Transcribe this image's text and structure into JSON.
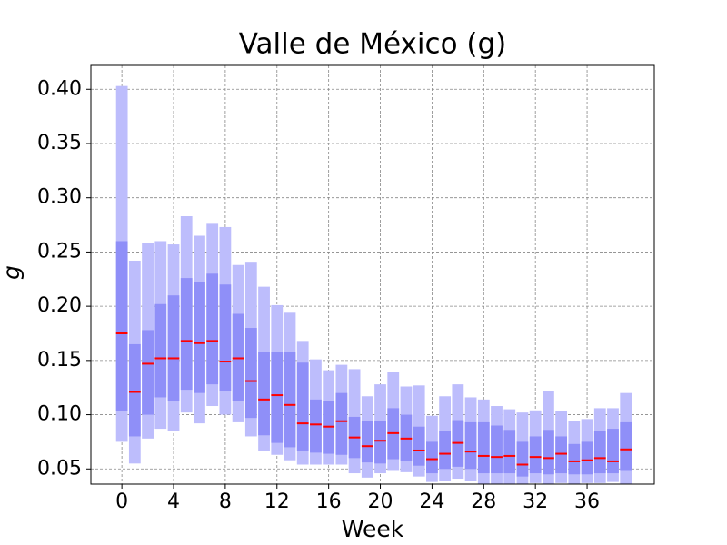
{
  "chart_data": {
    "type": "box",
    "title": "Valle de México (g)",
    "x_label": "Week",
    "y_label": "g",
    "x": [
      0,
      1,
      2,
      3,
      4,
      5,
      6,
      7,
      8,
      9,
      10,
      11,
      12,
      13,
      14,
      15,
      16,
      17,
      18,
      19,
      20,
      21,
      22,
      23,
      24,
      25,
      26,
      27,
      28,
      29,
      30,
      31,
      32,
      33,
      34,
      35,
      36,
      37,
      38,
      39
    ],
    "outer_low": [
      0.075,
      0.055,
      0.078,
      0.087,
      0.085,
      0.102,
      0.092,
      0.108,
      0.1,
      0.093,
      0.08,
      0.067,
      0.063,
      0.058,
      0.054,
      0.054,
      0.054,
      0.054,
      0.046,
      0.042,
      0.046,
      0.049,
      0.047,
      0.043,
      0.038,
      0.039,
      0.041,
      0.039,
      0.036,
      0.036,
      0.036,
      0.036,
      0.037,
      0.036,
      0.037,
      0.036,
      0.037,
      0.037,
      0.038,
      0.036
    ],
    "outer_high": [
      0.403,
      0.242,
      0.258,
      0.26,
      0.257,
      0.283,
      0.265,
      0.276,
      0.273,
      0.238,
      0.241,
      0.218,
      0.201,
      0.194,
      0.168,
      0.151,
      0.141,
      0.146,
      0.142,
      0.117,
      0.128,
      0.139,
      0.126,
      0.127,
      0.099,
      0.117,
      0.128,
      0.116,
      0.114,
      0.108,
      0.105,
      0.102,
      0.104,
      0.122,
      0.103,
      0.094,
      0.096,
      0.106,
      0.106,
      0.12
    ],
    "inner_low": [
      0.103,
      0.08,
      0.1,
      0.116,
      0.113,
      0.123,
      0.12,
      0.128,
      0.122,
      0.113,
      0.097,
      0.081,
      0.074,
      0.07,
      0.067,
      0.065,
      0.064,
      0.063,
      0.06,
      0.056,
      0.055,
      0.059,
      0.057,
      0.053,
      0.046,
      0.05,
      0.052,
      0.05,
      0.046,
      0.046,
      0.046,
      0.043,
      0.046,
      0.045,
      0.046,
      0.045,
      0.045,
      0.046,
      0.046,
      0.049
    ],
    "inner_high": [
      0.26,
      0.165,
      0.178,
      0.202,
      0.21,
      0.226,
      0.222,
      0.23,
      0.22,
      0.193,
      0.18,
      0.158,
      0.158,
      0.158,
      0.148,
      0.114,
      0.113,
      0.12,
      0.098,
      0.094,
      0.094,
      0.106,
      0.1,
      0.089,
      0.075,
      0.085,
      0.095,
      0.093,
      0.093,
      0.09,
      0.086,
      0.075,
      0.08,
      0.086,
      0.08,
      0.073,
      0.075,
      0.085,
      0.087,
      0.093
    ],
    "median": [
      0.175,
      0.121,
      0.147,
      0.152,
      0.152,
      0.168,
      0.166,
      0.168,
      0.149,
      0.152,
      0.131,
      0.114,
      0.118,
      0.109,
      0.092,
      0.091,
      0.089,
      0.094,
      0.079,
      0.071,
      0.076,
      0.083,
      0.078,
      0.067,
      0.059,
      0.064,
      0.074,
      0.066,
      0.062,
      0.061,
      0.062,
      0.054,
      0.061,
      0.06,
      0.064,
      0.057,
      0.058,
      0.06,
      0.057,
      0.068
    ],
    "outer_color": "#bdbdfc",
    "inner_color": "#8f8ff8",
    "median_color": "#ff0000",
    "xlim": [
      -2.4,
      41.2
    ],
    "ylim": [
      0.036,
      0.422
    ],
    "xticks": [
      0,
      4,
      8,
      12,
      16,
      20,
      24,
      28,
      32,
      36
    ],
    "yticks": [
      0.05,
      {
        "value": 0.1,
        "label": "0.10"
      },
      0.15,
      {
        "value": 0.2,
        "label": "0.20"
      },
      0.25,
      {
        "value": 0.3,
        "label": "0.30"
      },
      0.35,
      {
        "value": 0.4,
        "label": "0.40"
      }
    ],
    "grid": true
  }
}
